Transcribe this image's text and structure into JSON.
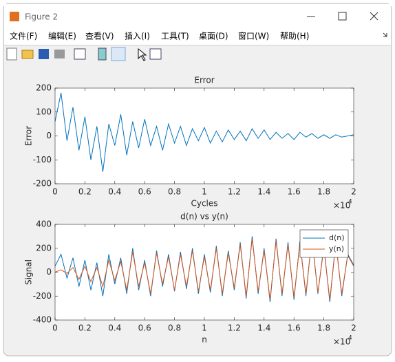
{
  "window": {
    "title": "Figure 2",
    "menu": [
      "文件(F)",
      "编辑(E)",
      "查看(V)",
      "插入(I)",
      "工具(T)",
      "桌面(D)",
      "窗口(W)",
      "帮助(H)"
    ]
  },
  "chart_data": [
    {
      "type": "line",
      "title": "Error",
      "x_label": "Cycles",
      "y_label": "Error",
      "x_multiplier": "×10",
      "x_multiplier_exponent": "4",
      "x": [
        0,
        400,
        800,
        1200,
        1600,
        2000,
        2400,
        2800,
        3200,
        3600,
        4000,
        4400,
        4800,
        5200,
        5600,
        6000,
        6400,
        6800,
        7200,
        7600,
        8000,
        8400,
        8800,
        9200,
        9600,
        10000,
        10400,
        10800,
        11200,
        11600,
        12000,
        12400,
        12800,
        13200,
        13600,
        14000,
        14400,
        14800,
        15200,
        15600,
        16000,
        16400,
        16800,
        17200,
        17600,
        18000,
        18400,
        18800,
        19200,
        19600,
        20000
      ],
      "values": [
        60,
        180,
        -20,
        120,
        -60,
        80,
        -100,
        40,
        -150,
        50,
        -40,
        90,
        -80,
        60,
        -50,
        70,
        -40,
        40,
        -60,
        50,
        -30,
        40,
        -40,
        30,
        -20,
        35,
        -30,
        20,
        -25,
        25,
        -15,
        20,
        -20,
        30,
        -10,
        25,
        -15,
        15,
        -10,
        10,
        -15,
        15,
        -5,
        10,
        -10,
        5,
        -10,
        5,
        -5,
        0,
        5
      ],
      "color": "#0072BD",
      "xlim": [
        0,
        20000
      ],
      "ylim": [
        -200,
        200
      ],
      "xticks": [
        {
          "value": 0,
          "label": "0"
        },
        {
          "value": 2000,
          "label": "0.2"
        },
        {
          "value": 4000,
          "label": "0.4"
        },
        {
          "value": 6000,
          "label": "0.6"
        },
        {
          "value": 8000,
          "label": "0.8"
        },
        {
          "value": 10000,
          "label": "1"
        },
        {
          "value": 12000,
          "label": "1.2"
        },
        {
          "value": 14000,
          "label": "1.4"
        },
        {
          "value": 16000,
          "label": "1.6"
        },
        {
          "value": 18000,
          "label": "1.8"
        },
        {
          "value": 20000,
          "label": "2"
        }
      ],
      "yticks": [
        -200,
        -100,
        0,
        100,
        200
      ]
    },
    {
      "type": "line",
      "title": "d(n) vs y(n)",
      "x_label": "n",
      "y_label": "Signal",
      "x_multiplier": "×10",
      "x_multiplier_exponent": "4",
      "x": [
        0,
        400,
        800,
        1200,
        1600,
        2000,
        2400,
        2800,
        3200,
        3600,
        4000,
        4400,
        4800,
        5200,
        5600,
        6000,
        6400,
        6800,
        7200,
        7600,
        8000,
        8400,
        8800,
        9200,
        9600,
        10000,
        10400,
        10800,
        11200,
        11600,
        12000,
        12400,
        12800,
        13200,
        13600,
        14000,
        14400,
        14800,
        15200,
        15600,
        16000,
        16400,
        16800,
        17200,
        17600,
        18000,
        18400,
        18800,
        19200,
        19600,
        20000
      ],
      "series": [
        {
          "name": "d(n)",
          "color": "#0072BD",
          "values": [
            50,
            150,
            -50,
            120,
            -120,
            100,
            -150,
            80,
            -200,
            150,
            -100,
            120,
            -180,
            200,
            -150,
            100,
            -200,
            180,
            -120,
            150,
            -160,
            170,
            -140,
            200,
            -180,
            150,
            -170,
            220,
            -200,
            180,
            -150,
            250,
            -220,
            300,
            -180,
            200,
            -250,
            280,
            -200,
            250,
            -230,
            260,
            -200,
            300,
            -180,
            220,
            -250,
            260,
            -200,
            150,
            60
          ]
        },
        {
          "name": "y(n)",
          "color": "#D95319",
          "values": [
            0,
            20,
            -10,
            40,
            -60,
            50,
            -80,
            40,
            -120,
            100,
            -70,
            90,
            -150,
            170,
            -120,
            80,
            -180,
            160,
            -100,
            130,
            -150,
            150,
            -120,
            180,
            -160,
            130,
            -150,
            200,
            -180,
            160,
            -130,
            230,
            -200,
            280,
            -160,
            180,
            -230,
            260,
            -180,
            230,
            -210,
            240,
            -180,
            280,
            -170,
            200,
            -230,
            240,
            -180,
            140,
            50
          ]
        }
      ],
      "legend": "northeast",
      "xlim": [
        0,
        20000
      ],
      "ylim": [
        -400,
        400
      ],
      "xticks": [
        {
          "value": 0,
          "label": "0"
        },
        {
          "value": 2000,
          "label": "0.2"
        },
        {
          "value": 4000,
          "label": "0.4"
        },
        {
          "value": 6000,
          "label": "0.6"
        },
        {
          "value": 8000,
          "label": "0.8"
        },
        {
          "value": 10000,
          "label": "1"
        },
        {
          "value": 12000,
          "label": "1.2"
        },
        {
          "value": 14000,
          "label": "1.4"
        },
        {
          "value": 16000,
          "label": "1.6"
        },
        {
          "value": 18000,
          "label": "1.8"
        },
        {
          "value": 20000,
          "label": "2"
        }
      ],
      "yticks": [
        -400,
        -200,
        0,
        200,
        400
      ]
    }
  ]
}
